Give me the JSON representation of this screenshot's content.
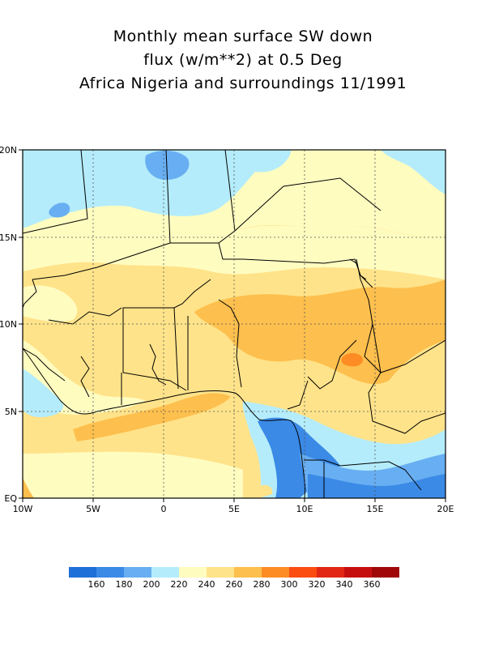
{
  "title": {
    "line1": "Monthly mean surface SW down",
    "line2": "flux (w/m**2) at 0.5 Deg",
    "line3": "Africa Nigeria and surroundings 11/1991"
  },
  "axes": {
    "x_ticks": [
      "10W",
      "5W",
      "0",
      "5E",
      "10E",
      "15E",
      "20E"
    ],
    "y_ticks": [
      "20N",
      "15N",
      "10N",
      "5N",
      "EQ"
    ]
  },
  "legend": {
    "colors": [
      "#1f6fd8",
      "#3a8ae6",
      "#68aef2",
      "#b4ecfb",
      "#fffcc0",
      "#ffe38a",
      "#fdbf4d",
      "#fd8c24",
      "#fb4d12",
      "#e22714",
      "#c50f0f",
      "#a00808"
    ],
    "labels": [
      "160",
      "180",
      "200",
      "220",
      "240",
      "260",
      "280",
      "300",
      "320",
      "340",
      "360"
    ]
  },
  "chart_data": {
    "type": "heatmap",
    "variable": "surface SW down flux",
    "units": "w/m**2",
    "xlim": [
      -10,
      20
    ],
    "ylim": [
      0,
      20
    ],
    "levels": [
      160,
      180,
      200,
      220,
      240,
      260,
      280,
      300,
      320,
      340,
      360
    ]
  }
}
